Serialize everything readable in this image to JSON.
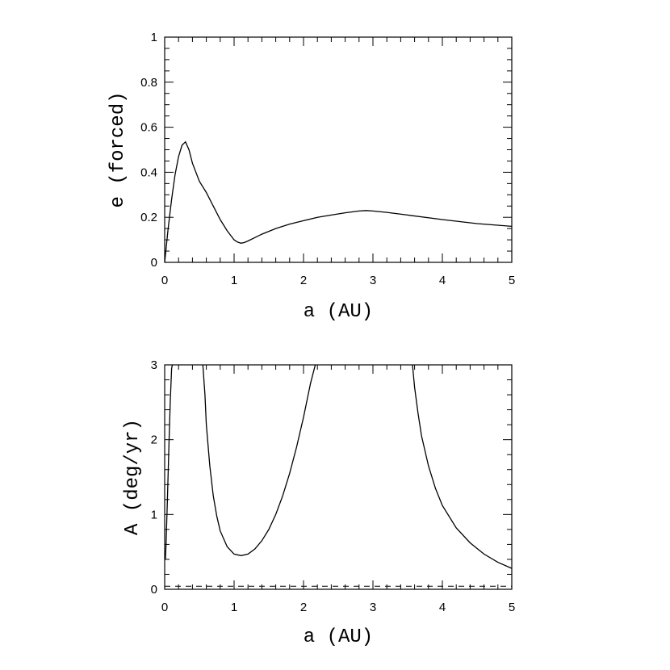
{
  "chart_data": [
    {
      "type": "line",
      "xlabel": "a (AU)",
      "ylabel": "e (forced)",
      "xlim": [
        0,
        5
      ],
      "ylim": [
        0,
        1
      ],
      "xticks": [
        "0",
        "1",
        "2",
        "3",
        "4",
        "5"
      ],
      "yticks": [
        "0",
        "0.2",
        "0.4",
        "0.6",
        "0.8",
        "1"
      ],
      "grid": false,
      "series": [
        {
          "x": [
            0,
            0.05,
            0.1,
            0.15,
            0.2,
            0.25,
            0.3,
            0.35,
            0.4,
            0.5,
            0.6,
            0.7,
            0.8,
            0.9,
            1.0,
            1.05,
            1.1,
            1.15,
            1.2,
            1.3,
            1.4,
            1.6,
            1.8,
            2.0,
            2.2,
            2.4,
            2.6,
            2.8,
            2.9,
            3.0,
            3.2,
            3.5,
            4.0,
            4.5,
            5.0
          ],
          "y": [
            0,
            0.15,
            0.28,
            0.39,
            0.47,
            0.52,
            0.535,
            0.5,
            0.44,
            0.36,
            0.31,
            0.25,
            0.19,
            0.14,
            0.1,
            0.09,
            0.085,
            0.088,
            0.095,
            0.11,
            0.125,
            0.15,
            0.17,
            0.185,
            0.2,
            0.21,
            0.22,
            0.228,
            0.23,
            0.228,
            0.222,
            0.21,
            0.19,
            0.172,
            0.16
          ]
        }
      ]
    },
    {
      "type": "line",
      "xlabel": "a (AU)",
      "ylabel": "A (deg/yr)",
      "xlim": [
        0,
        5
      ],
      "ylim": [
        0,
        3
      ],
      "xticks": [
        "0",
        "1",
        "2",
        "3",
        "4",
        "5"
      ],
      "yticks": [
        "0",
        "1",
        "2",
        "3"
      ],
      "grid": false,
      "series": [
        {
          "x": [
            0.01,
            0.02,
            0.04,
            0.06,
            0.08,
            0.1,
            0.11
          ],
          "y": [
            0.4,
            0.6,
            1.2,
            1.9,
            2.5,
            2.95,
            3.0
          ]
        },
        {
          "x": [
            0.55,
            0.58,
            0.6,
            0.65,
            0.7,
            0.75,
            0.8,
            0.9,
            1.0,
            1.1,
            1.2,
            1.3,
            1.4,
            1.5,
            1.6,
            1.7,
            1.8,
            1.9,
            2.0,
            2.1,
            2.17
          ],
          "y": [
            3.0,
            2.6,
            2.2,
            1.65,
            1.25,
            0.98,
            0.78,
            0.57,
            0.47,
            0.45,
            0.47,
            0.54,
            0.65,
            0.8,
            1.0,
            1.25,
            1.55,
            1.9,
            2.3,
            2.75,
            3.0
          ]
        },
        {
          "x": [
            3.57,
            3.6,
            3.65,
            3.7,
            3.8,
            3.9,
            4.0,
            4.2,
            4.4,
            4.6,
            4.8,
            5.0
          ],
          "y": [
            3.0,
            2.7,
            2.35,
            2.05,
            1.65,
            1.35,
            1.12,
            0.82,
            0.62,
            0.47,
            0.36,
            0.28
          ]
        },
        {
          "x": [
            0,
            5
          ],
          "y": [
            0.04,
            0.04
          ],
          "style": "dashed"
        }
      ]
    }
  ]
}
